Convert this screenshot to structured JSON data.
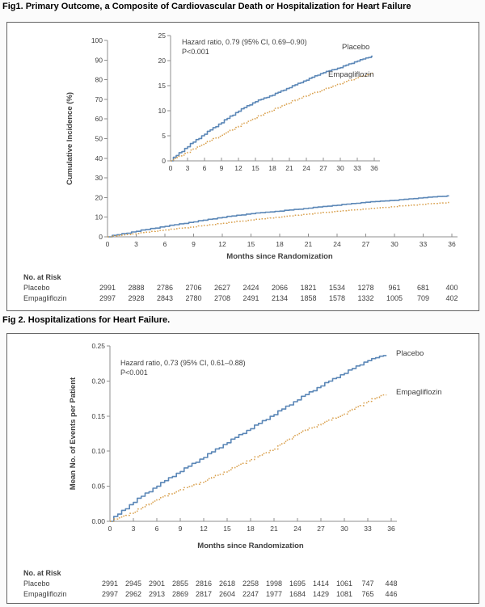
{
  "colors": {
    "placebo": "#5b87b7",
    "empagliflozin": "#d9a04d",
    "axis": "#8f8f8f",
    "text": "#3f3f3f"
  },
  "chart_data": [
    {
      "id": "fig1_main",
      "type": "line",
      "title": "Fig1. Primary Outcome, a Composite of Cardiovascular Death or Hospitalization for Heart Failure",
      "xlabel": "Months since Randomization",
      "ylabel": "Cumulative Incidence (%)",
      "xlim": [
        0,
        36
      ],
      "ylim": [
        0,
        100
      ],
      "grid": false,
      "legend_position": "none",
      "xticks": [
        0,
        3,
        6,
        9,
        12,
        15,
        18,
        21,
        24,
        27,
        30,
        33,
        36
      ],
      "yticks": [
        0,
        10,
        20,
        30,
        40,
        50,
        60,
        70,
        80,
        90,
        100
      ],
      "x": [
        0,
        3,
        6,
        9,
        12,
        15,
        18,
        21,
        24,
        27,
        30,
        33,
        36
      ],
      "series": [
        {
          "name": "Placebo",
          "style": "solid",
          "color_key": "placebo",
          "values": [
            0,
            2.8,
            5.3,
            7.6,
            9.9,
            11.8,
            13.1,
            14.6,
            16.1,
            17.6,
            18.6,
            19.9,
            21.0
          ]
        },
        {
          "name": "Empagliflozin",
          "style": "dotted",
          "color_key": "empagliflozin",
          "values": [
            0,
            1.7,
            3.5,
            5.1,
            6.9,
            8.6,
            10.1,
            11.6,
            13.0,
            14.2,
            15.4,
            16.6,
            17.6
          ]
        }
      ],
      "at_risk": {
        "header": "No. at Risk",
        "rows": [
          {
            "label": "Placebo",
            "values": [
              2991,
              2888,
              2786,
              2706,
              2627,
              2424,
              2066,
              1821,
              1534,
              1278,
              961,
              681,
              400
            ]
          },
          {
            "label": "Empagliflozin",
            "values": [
              2997,
              2928,
              2843,
              2780,
              2708,
              2491,
              2134,
              1858,
              1578,
              1332,
              1005,
              709,
              402
            ]
          }
        ]
      }
    },
    {
      "id": "fig1_inset",
      "type": "line",
      "title": "",
      "annotation": [
        "Hazard ratio, 0.79 (95% CI, 0.69–0.90)",
        "P<0.001"
      ],
      "xlim": [
        0,
        36
      ],
      "ylim": [
        0,
        25
      ],
      "grid": false,
      "xticks": [
        0,
        3,
        6,
        9,
        12,
        15,
        18,
        21,
        24,
        27,
        30,
        33,
        36
      ],
      "yticks": [
        0,
        5,
        10,
        15,
        20,
        25
      ],
      "x": [
        0,
        3,
        6,
        9,
        12,
        15,
        18,
        21,
        24,
        27,
        30,
        33,
        36
      ],
      "series": [
        {
          "name": "Placebo",
          "style": "solid",
          "color_key": "placebo",
          "values": [
            0,
            2.8,
            5.3,
            7.6,
            9.9,
            11.8,
            13.1,
            14.6,
            16.1,
            17.6,
            18.6,
            19.9,
            21.0
          ]
        },
        {
          "name": "Empagliflozin",
          "style": "dotted",
          "color_key": "empagliflozin",
          "values": [
            0,
            1.7,
            3.5,
            5.1,
            6.9,
            8.6,
            10.1,
            11.6,
            13.0,
            14.2,
            15.4,
            16.6,
            17.6
          ]
        }
      ],
      "series_labels": [
        "Placebo",
        "Empagliflozin"
      ]
    },
    {
      "id": "fig2",
      "type": "line",
      "title": "Fig 2. Hospitalizations for Heart Failure.",
      "xlabel": "Months since Randomization",
      "ylabel": "Mean No. of Events per Patient",
      "annotation": [
        "Hazard ratio, 0.73 (95% CI, 0.61–0.88)",
        "P<0.001"
      ],
      "xlim": [
        0,
        36
      ],
      "ylim": [
        0,
        0.25
      ],
      "grid": false,
      "xticks": [
        0,
        3,
        6,
        9,
        12,
        15,
        18,
        21,
        24,
        27,
        30,
        33,
        36
      ],
      "yticks": [
        0,
        0.05,
        0.1,
        0.15,
        0.2,
        0.25
      ],
      "ytick_labels": [
        "0.00",
        "0.05",
        "0.10",
        "0.15",
        "0.20",
        "0.25"
      ],
      "x": [
        0,
        3,
        6,
        9,
        12,
        15,
        18,
        21,
        24,
        27,
        30,
        33,
        36
      ],
      "series": [
        {
          "name": "Placebo",
          "style": "solid",
          "color_key": "placebo",
          "values": [
            0,
            0.027,
            0.05,
            0.071,
            0.091,
            0.112,
            0.132,
            0.152,
            0.173,
            0.193,
            0.211,
            0.229,
            0.24
          ]
        },
        {
          "name": "Empagliflozin",
          "style": "dotted",
          "color_key": "empagliflozin",
          "values": [
            0,
            0.013,
            0.031,
            0.045,
            0.057,
            0.072,
            0.088,
            0.103,
            0.125,
            0.139,
            0.153,
            0.171,
            0.185
          ]
        }
      ],
      "series_labels": [
        "Placebo",
        "Empagliflozin"
      ],
      "at_risk": {
        "header": "No. at Risk",
        "rows": [
          {
            "label": "Placebo",
            "values": [
              2991,
              2945,
              2901,
              2855,
              2816,
              2618,
              2258,
              1998,
              1695,
              1414,
              1061,
              747,
              448
            ]
          },
          {
            "label": "Empagliflozin",
            "values": [
              2997,
              2962,
              2913,
              2869,
              2817,
              2604,
              2247,
              1977,
              1684,
              1429,
              1081,
              765,
              446
            ]
          }
        ]
      }
    }
  ]
}
